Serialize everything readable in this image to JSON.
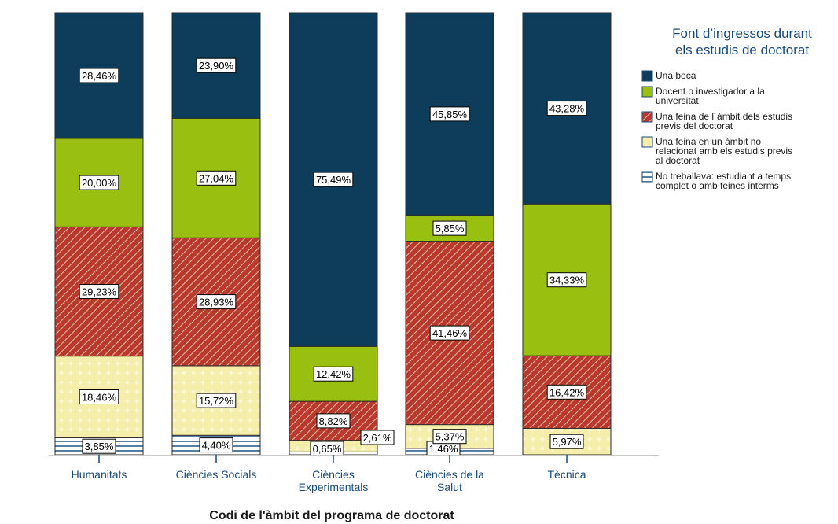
{
  "chart_data": {
    "type": "bar",
    "stacked": true,
    "percent_stacked": true,
    "xlabel": "Codi de l'àmbit del programa de doctorat",
    "ylabel": "",
    "ylim": [
      0,
      100
    ],
    "categories": [
      [
        "Humanitats"
      ],
      [
        "Ciències Socials"
      ],
      [
        "Ciències",
        "Experimentals"
      ],
      [
        "Ciències de la",
        "Salut"
      ],
      [
        "Tècnica"
      ]
    ],
    "series": [
      {
        "name": "No treballava: estudiant a temps complet o amb feines interms",
        "values": [
          3.85,
          4.4,
          0.65,
          1.46,
          0.0
        ],
        "labels": [
          "3,85%",
          "4,40%",
          "0,65%",
          "1,46%",
          ""
        ],
        "color": "#ffffff",
        "pattern": "hlines"
      },
      {
        "name": "Una feina en un àmbit no relacionat amb els estudis previs al doctorat",
        "values": [
          18.46,
          15.72,
          2.61,
          5.37,
          5.97
        ],
        "labels": [
          "18,46%",
          "15,72%",
          "2,61%",
          "5,37%",
          "5,97%"
        ],
        "color": "#f5eeaa",
        "pattern": "dots"
      },
      {
        "name": "Una feina de l'àmbit dels estudis previs del doctorat",
        "values": [
          29.23,
          28.93,
          8.82,
          41.46,
          16.42
        ],
        "labels": [
          "29,23%",
          "28,93%",
          "8,82%",
          "41,46%",
          "16,42%"
        ],
        "color": "#b83a2c",
        "pattern": "diag"
      },
      {
        "name": "Docent o investigador a la universitat",
        "values": [
          20.0,
          27.04,
          12.42,
          5.85,
          34.33
        ],
        "labels": [
          "20,00%",
          "27,04%",
          "12,42%",
          "5,85%",
          "34,33%"
        ],
        "color": "#99c010",
        "pattern": "solid"
      },
      {
        "name": "Una beca",
        "values": [
          28.46,
          23.9,
          75.49,
          45.85,
          43.28
        ],
        "labels": [
          "28,46%",
          "23,90%",
          "75,49%",
          "45,85%",
          "43,28%"
        ],
        "color": "#0d3d5a",
        "pattern": "solid"
      }
    ],
    "legend": {
      "title_lines": [
        "Font d’ingressos durant",
        "els estudis de doctorat"
      ],
      "placement": "right",
      "items": [
        {
          "series": 4,
          "lines": [
            "Una beca"
          ]
        },
        {
          "series": 3,
          "lines": [
            "Docent o investigador a la",
            "universitat"
          ]
        },
        {
          "series": 2,
          "lines": [
            "Una feina de l´àmbit dels estudis",
            "previs del doctorat"
          ]
        },
        {
          "series": 1,
          "lines": [
            "Una feina en un àmbit no",
            "relacionat amb els estudis previs",
            "al doctorat"
          ]
        },
        {
          "series": 0,
          "lines": [
            "No treballava: estudiant a temps",
            "complet o amb feines interms"
          ]
        }
      ]
    },
    "grid": false
  }
}
